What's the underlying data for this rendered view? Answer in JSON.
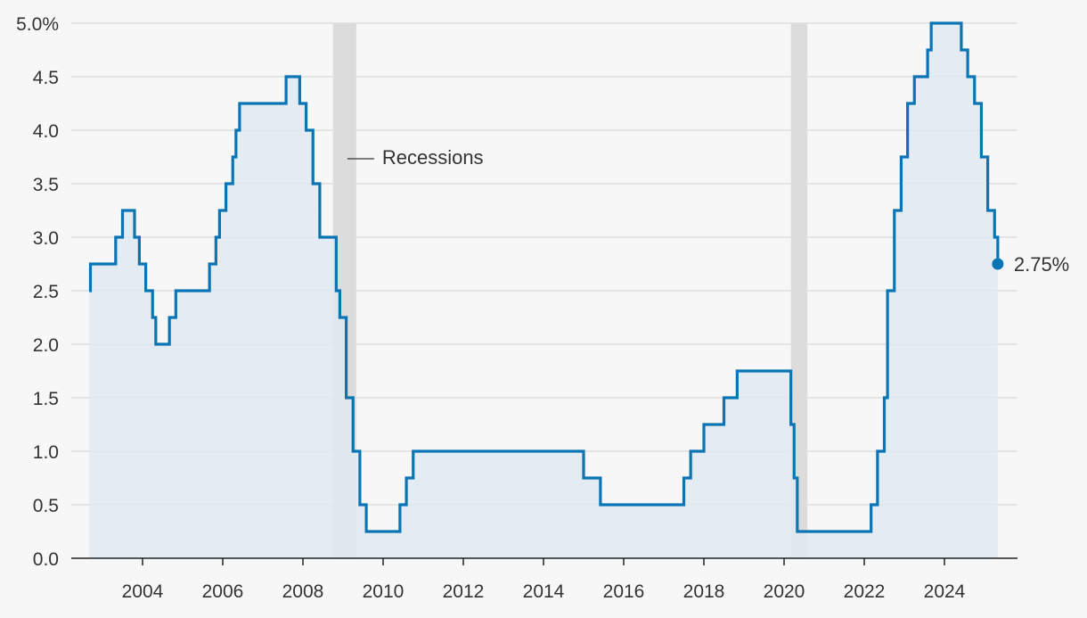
{
  "chart_data": {
    "type": "area",
    "title": "",
    "xlabel": "",
    "ylabel": "",
    "xlim": [
      2002.5,
      2025.7
    ],
    "ylim": [
      0,
      5
    ],
    "grid": true,
    "y_ticks": [
      0,
      0.5,
      1,
      1.5,
      2,
      2.5,
      3,
      3.5,
      4,
      4.5,
      5
    ],
    "y_tick_labels": [
      "0.0",
      "0.5",
      "1.0",
      "1.5",
      "2.0",
      "2.5",
      "3.0",
      "3.5",
      "4.0",
      "4.5",
      "5.0%"
    ],
    "x_ticks": [
      2004,
      2006,
      2008,
      2010,
      2012,
      2014,
      2016,
      2018,
      2020,
      2022,
      2024
    ],
    "x_tick_labels": [
      "2004",
      "2006",
      "2008",
      "2010",
      "2012",
      "2014",
      "2016",
      "2018",
      "2020",
      "2022",
      "2024"
    ],
    "recessions": [
      [
        2008.75,
        2009.33
      ],
      [
        2020.17,
        2020.58
      ]
    ],
    "recession_label": "Recessions",
    "end_label": "2.75%",
    "colors": {
      "line": "#0a74b4",
      "fill": "#dfeaf2",
      "recession": "#dcdcdc",
      "grid": "#dddddd",
      "axis": "#222222"
    },
    "step_points": [
      [
        2002.67,
        2.5
      ],
      [
        2002.7,
        2.75
      ],
      [
        2003.33,
        3.0
      ],
      [
        2003.5,
        3.25
      ],
      [
        2003.8,
        3.0
      ],
      [
        2003.92,
        2.75
      ],
      [
        2004.08,
        2.5
      ],
      [
        2004.25,
        2.25
      ],
      [
        2004.33,
        2.0
      ],
      [
        2004.67,
        2.25
      ],
      [
        2004.83,
        2.5
      ],
      [
        2005.67,
        2.75
      ],
      [
        2005.83,
        3.0
      ],
      [
        2005.92,
        3.25
      ],
      [
        2006.08,
        3.5
      ],
      [
        2006.25,
        3.75
      ],
      [
        2006.33,
        4.0
      ],
      [
        2006.42,
        4.25
      ],
      [
        2007.58,
        4.5
      ],
      [
        2007.92,
        4.25
      ],
      [
        2008.08,
        4.0
      ],
      [
        2008.25,
        3.5
      ],
      [
        2008.42,
        3.0
      ],
      [
        2008.83,
        2.5
      ],
      [
        2008.92,
        2.25
      ],
      [
        2009.08,
        1.5
      ],
      [
        2009.25,
        1.0
      ],
      [
        2009.42,
        0.5
      ],
      [
        2009.58,
        0.25
      ],
      [
        2010.42,
        0.5
      ],
      [
        2010.58,
        0.75
      ],
      [
        2010.75,
        1.0
      ],
      [
        2015.0,
        0.75
      ],
      [
        2015.42,
        0.5
      ],
      [
        2017.5,
        0.75
      ],
      [
        2017.67,
        1.0
      ],
      [
        2018.0,
        1.25
      ],
      [
        2018.5,
        1.5
      ],
      [
        2018.83,
        1.75
      ],
      [
        2020.17,
        1.25
      ],
      [
        2020.25,
        0.75
      ],
      [
        2020.33,
        0.25
      ],
      [
        2022.17,
        0.5
      ],
      [
        2022.33,
        1.0
      ],
      [
        2022.5,
        1.5
      ],
      [
        2022.58,
        2.5
      ],
      [
        2022.75,
        3.25
      ],
      [
        2022.92,
        3.75
      ],
      [
        2023.08,
        4.25
      ],
      [
        2023.25,
        4.5
      ],
      [
        2023.58,
        4.75
      ],
      [
        2023.67,
        5.0
      ],
      [
        2024.42,
        4.75
      ],
      [
        2024.58,
        4.5
      ],
      [
        2024.75,
        4.25
      ],
      [
        2024.92,
        3.75
      ],
      [
        2025.08,
        3.25
      ],
      [
        2025.25,
        3.0
      ],
      [
        2025.33,
        2.75
      ]
    ]
  }
}
